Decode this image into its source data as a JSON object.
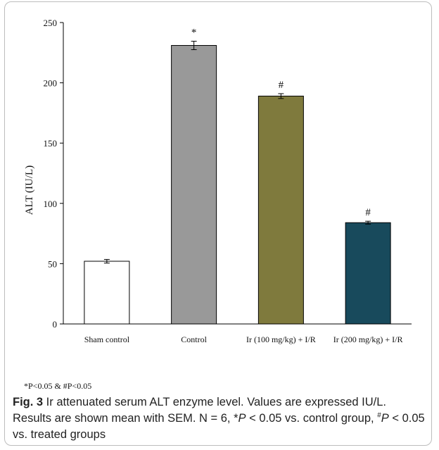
{
  "chart_data": {
    "type": "bar",
    "title": "",
    "xlabel": "",
    "ylabel": "ALT (IU/L)",
    "ylim": [
      0,
      250
    ],
    "yticks": [
      0,
      50,
      100,
      150,
      200,
      250
    ],
    "grid": false,
    "categories": [
      "Sham control",
      "Control",
      "Ir (100 mg/kg) + I/R",
      "Ir (200 mg/kg) + I/R"
    ],
    "values": [
      52,
      231,
      189,
      84
    ],
    "errors": [
      1.5,
      3.5,
      2.0,
      1.2
    ],
    "annotations": [
      "",
      "*",
      "#",
      "#"
    ],
    "colors": [
      "#ffffff",
      "#999999",
      "#7f7a3d",
      "#184a5c"
    ]
  },
  "footnote": "*P<0.05 & #P<0.05",
  "caption": {
    "label": "Fig. 3",
    "text1": " Ir attenuated serum ALT enzyme level. Values are expressed IU/L. Results are shown mean with SEM. N = 6, *",
    "p1": "P",
    "text2": " < 0.05 vs. control group, ",
    "sup": "#",
    "p2": "P",
    "text3": " < 0.05 vs. treated groups"
  }
}
